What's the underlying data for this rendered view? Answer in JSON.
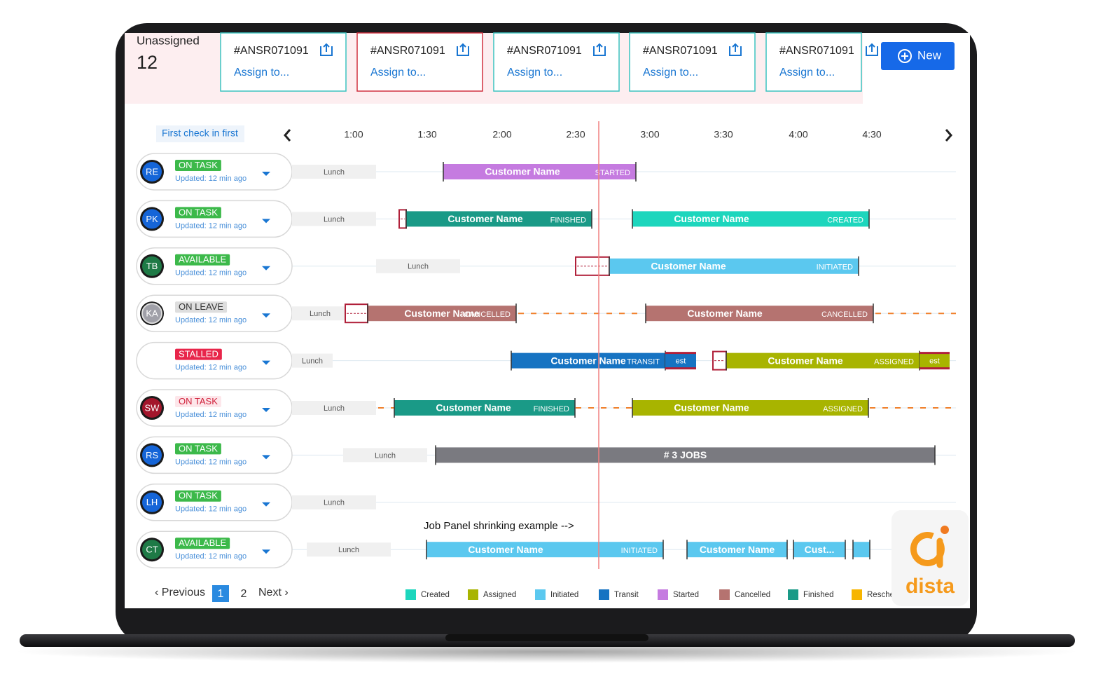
{
  "unassigned": {
    "label": "Unassigned",
    "count": "12"
  },
  "job_cards": [
    {
      "id": "#ANSR071091",
      "action": "Assign to..."
    },
    {
      "id": "#ANSR071091",
      "action": "Assign to..."
    },
    {
      "id": "#ANSR071091",
      "action": "Assign to..."
    },
    {
      "id": "#ANSR071091",
      "action": "Assign to..."
    },
    {
      "id": "#ANSR071091",
      "action": "Assign to..."
    }
  ],
  "new_button": "New",
  "filter": "First check in first",
  "time_axis": [
    "1:00",
    "1:30",
    "2:00",
    "2:30",
    "3:00",
    "3:30",
    "4:00",
    "4:30"
  ],
  "rows": [
    {
      "initials": "RE",
      "status": "ON TASK",
      "updated": "Updated: 12 min ago",
      "break": "Lunch",
      "jobs": [
        {
          "name": "Customer Name",
          "state": "STARTED"
        }
      ]
    },
    {
      "initials": "PK",
      "status": "ON TASK",
      "updated": "Updated: 12 min ago",
      "break": "Lunch",
      "jobs": [
        {
          "name": "Customer Name",
          "state": "FINISHED"
        },
        {
          "name": "Customer Name",
          "state": "CREATED"
        }
      ]
    },
    {
      "initials": "TB",
      "status": "AVAILABLE",
      "updated": "Updated: 12 min ago",
      "break": "Lunch",
      "jobs": [
        {
          "name": "Customer Name",
          "state": "INITIATED"
        }
      ]
    },
    {
      "initials": "KA",
      "status": "ON LEAVE",
      "updated": "Updated: 12 min ago",
      "break": "Lunch",
      "jobs": [
        {
          "name": "Customer Name",
          "state": "CANCELLED"
        },
        {
          "name": "Customer Name",
          "state": "CANCELLED"
        }
      ]
    },
    {
      "status": "STALLED",
      "updated": "Updated: 12 min ago",
      "break": "Lunch",
      "jobs": [
        {
          "name": "Customer Name",
          "state": "TRANSIT",
          "estimate": "est"
        },
        {
          "name": "Customer Name",
          "state": "ASSIGNED",
          "estimate": "est"
        }
      ]
    },
    {
      "initials": "SW",
      "status": "ON TASK",
      "updated": "Updated: 12 min ago",
      "break": "Lunch",
      "jobs": [
        {
          "name": "Customer Name",
          "state": "FINISHED"
        },
        {
          "name": "Customer Name",
          "state": "ASSIGNED"
        }
      ]
    },
    {
      "initials": "RS",
      "status": "ON TASK",
      "updated": "Updated: 12 min ago",
      "break": "Lunch",
      "jobs": [
        {
          "name": "# 3 JOBS"
        }
      ]
    },
    {
      "initials": "LH",
      "status": "ON TASK",
      "updated": "Updated: 12 min ago",
      "break": "Lunch",
      "jobs": []
    },
    {
      "initials": "CT",
      "status": "AVAILABLE",
      "updated": "Updated: 12 min ago",
      "break": "Lunch",
      "jobs": [
        {
          "name": "Customer Name",
          "state": "INITIATED"
        },
        {
          "name": "Customer Name"
        },
        {
          "name": "Cust..."
        }
      ]
    }
  ],
  "annotation": "Job Panel shrinking example -->",
  "pagination": {
    "previous": "‹ Previous",
    "pages": [
      "1",
      "2"
    ],
    "next": "Next ›"
  },
  "legend": [
    {
      "label": "Created",
      "color": "#1dd6bd"
    },
    {
      "label": "Assigned",
      "color": "#a8b400"
    },
    {
      "label": "Initiated",
      "color": "#5bc8ef"
    },
    {
      "label": "Transit",
      "color": "#1673c2"
    },
    {
      "label": "Started",
      "color": "#c57be0"
    },
    {
      "label": "Cancelled",
      "color": "#b57370"
    },
    {
      "label": "Finished",
      "color": "#1a9a87"
    },
    {
      "label": "Resche",
      "color": "#f7b500"
    }
  ],
  "logo": "dista"
}
